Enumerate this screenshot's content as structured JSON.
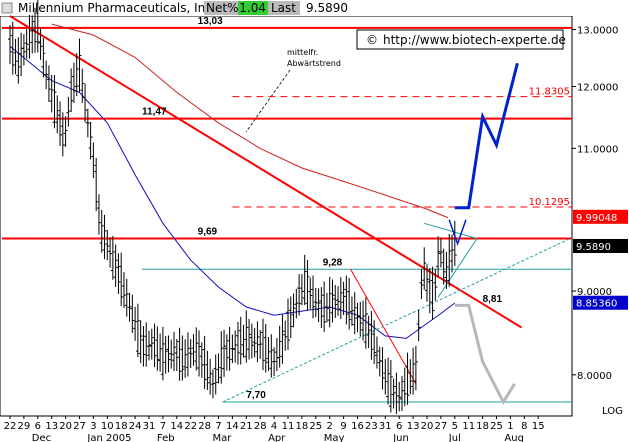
{
  "header": {
    "ticker_name": "Millennium Pharmaceuticals, Inc.",
    "net_label": "Net%",
    "net_value": "1.04",
    "last_label": "Last",
    "last_value": "9.5890"
  },
  "copyright": {
    "symbol": "©",
    "url": "http://www.biotech-experte.de"
  },
  "annotations": {
    "trend_note_line1": "mittelfr.",
    "trend_note_line2": "Abwärtstrend"
  },
  "colors": {
    "price_bar": "#000000",
    "trend_line": "#ff0000",
    "moving_avg_short": "#1010c0",
    "moving_avg_long": "#cc2222",
    "support": "#20a0a0",
    "projection_up": "#0022cc",
    "projection_down": "#b8b8b8",
    "header_green": "#33cc33",
    "badge_red": "#ff0000",
    "badge_black": "#000000",
    "badge_blue": "#0000cc"
  },
  "chart_data": {
    "type": "ohlc",
    "scale": "log",
    "ylim": [
      7.55,
      13.25
    ],
    "y_ticks": [
      {
        "value": 13.0,
        "label": "13.0000"
      },
      {
        "value": 12.0,
        "label": "12.0000"
      },
      {
        "value": 11.0,
        "label": "11.0000"
      },
      {
        "value": 9.0,
        "label": "9.0000"
      },
      {
        "value": 8.0,
        "label": "8.0000"
      }
    ],
    "y_axis_note": "LOG",
    "x_day_labels": [
      "22",
      "29",
      "6",
      "13",
      "20",
      "27",
      "3",
      "10",
      "18",
      "24",
      "31",
      "7",
      "14",
      "22",
      "28",
      "7",
      "14",
      "21",
      "28",
      "4",
      "11",
      "18",
      "25",
      "2",
      "9",
      "16",
      "23",
      "31",
      "6",
      "13",
      "20",
      "27",
      "5",
      "11",
      "18",
      "25",
      "1",
      "8",
      "15"
    ],
    "x_month_labels": [
      {
        "label": "Dec",
        "at_day_index": 2
      },
      {
        "label": "Jan 2005",
        "at_day_index": 6
      },
      {
        "label": "Feb",
        "at_day_index": 11
      },
      {
        "label": "Mar",
        "at_day_index": 15
      },
      {
        "label": "Apr",
        "at_day_index": 19
      },
      {
        "label": "May",
        "at_day_index": 23
      },
      {
        "label": "Jun",
        "at_day_index": 28
      },
      {
        "label": "Jul",
        "at_day_index": 32
      },
      {
        "label": "Aug",
        "at_day_index": 36
      }
    ],
    "price_anchors": [
      {
        "day_index": 0,
        "value": 12.7
      },
      {
        "day_index": 0.6,
        "value": 12.4
      },
      {
        "day_index": 1.3,
        "value": 12.8
      },
      {
        "day_index": 2.0,
        "value": 13.0
      },
      {
        "day_index": 2.6,
        "value": 12.2
      },
      {
        "day_index": 3.3,
        "value": 11.6
      },
      {
        "day_index": 3.9,
        "value": 11.1
      },
      {
        "day_index": 4.4,
        "value": 11.9
      },
      {
        "day_index": 5.0,
        "value": 12.3
      },
      {
        "day_index": 5.6,
        "value": 11.4
      },
      {
        "day_index": 6.0,
        "value": 10.8
      },
      {
        "day_index": 6.5,
        "value": 9.8
      },
      {
        "day_index": 7.0,
        "value": 9.6
      },
      {
        "day_index": 7.6,
        "value": 9.3
      },
      {
        "day_index": 8.2,
        "value": 9.0
      },
      {
        "day_index": 8.8,
        "value": 8.7
      },
      {
        "day_index": 9.5,
        "value": 8.3
      },
      {
        "day_index": 10.2,
        "value": 8.35
      },
      {
        "day_index": 11.0,
        "value": 8.2
      },
      {
        "day_index": 11.8,
        "value": 8.25
      },
      {
        "day_index": 12.5,
        "value": 8.15
      },
      {
        "day_index": 13.3,
        "value": 8.3
      },
      {
        "day_index": 14.0,
        "value": 8.1
      },
      {
        "day_index": 14.6,
        "value": 7.9
      },
      {
        "day_index": 15.3,
        "value": 8.2
      },
      {
        "day_index": 16.0,
        "value": 8.3
      },
      {
        "day_index": 17.0,
        "value": 8.4
      },
      {
        "day_index": 18.0,
        "value": 8.35
      },
      {
        "day_index": 19.0,
        "value": 8.15
      },
      {
        "day_index": 19.8,
        "value": 8.45
      },
      {
        "day_index": 20.5,
        "value": 8.8
      },
      {
        "day_index": 21.2,
        "value": 9.1
      },
      {
        "day_index": 21.8,
        "value": 8.9
      },
      {
        "day_index": 22.5,
        "value": 8.75
      },
      {
        "day_index": 23.2,
        "value": 8.85
      },
      {
        "day_index": 24.0,
        "value": 8.9
      },
      {
        "day_index": 24.8,
        "value": 8.7
      },
      {
        "day_index": 25.5,
        "value": 8.6
      },
      {
        "day_index": 26.2,
        "value": 8.35
      },
      {
        "day_index": 26.9,
        "value": 8.0
      },
      {
        "day_index": 27.5,
        "value": 7.8
      },
      {
        "day_index": 28.1,
        "value": 7.75
      },
      {
        "day_index": 28.7,
        "value": 7.95
      },
      {
        "day_index": 29.2,
        "value": 8.05
      },
      {
        "day_index": 29.7,
        "value": 9.35
      },
      {
        "day_index": 30.1,
        "value": 9.0
      },
      {
        "day_index": 30.5,
        "value": 8.9
      },
      {
        "day_index": 30.9,
        "value": 9.6
      },
      {
        "day_index": 31.3,
        "value": 9.2
      },
      {
        "day_index": 31.6,
        "value": 9.35
      },
      {
        "day_index": 32.0,
        "value": 9.59
      }
    ],
    "moving_average_short": [
      {
        "day_index": 0,
        "value": 12.7
      },
      {
        "day_index": 3,
        "value": 12.1
      },
      {
        "day_index": 5,
        "value": 11.9
      },
      {
        "day_index": 7,
        "value": 11.4
      },
      {
        "day_index": 9,
        "value": 10.6
      },
      {
        "day_index": 11,
        "value": 9.9
      },
      {
        "day_index": 13,
        "value": 9.4
      },
      {
        "day_index": 15,
        "value": 9.05
      },
      {
        "day_index": 17,
        "value": 8.8
      },
      {
        "day_index": 19,
        "value": 8.7
      },
      {
        "day_index": 21,
        "value": 8.75
      },
      {
        "day_index": 23,
        "value": 8.8
      },
      {
        "day_index": 25,
        "value": 8.7
      },
      {
        "day_index": 27,
        "value": 8.45
      },
      {
        "day_index": 28.5,
        "value": 8.42
      },
      {
        "day_index": 30,
        "value": 8.6
      },
      {
        "day_index": 31,
        "value": 8.72
      },
      {
        "day_index": 32,
        "value": 8.85
      }
    ],
    "moving_average_long": [
      {
        "day_index": 3,
        "value": 13.1
      },
      {
        "day_index": 6,
        "value": 12.9
      },
      {
        "day_index": 9,
        "value": 12.5
      },
      {
        "day_index": 12,
        "value": 11.9
      },
      {
        "day_index": 15,
        "value": 11.4
      },
      {
        "day_index": 18,
        "value": 11.0
      },
      {
        "day_index": 21,
        "value": 10.7
      },
      {
        "day_index": 24,
        "value": 10.5
      },
      {
        "day_index": 27,
        "value": 10.3
      },
      {
        "day_index": 30,
        "value": 10.1
      },
      {
        "day_index": 31.5,
        "value": 9.98
      }
    ],
    "levels": [
      {
        "value": 13.03,
        "label": "13,03",
        "color": "#ff0000",
        "style": "solid",
        "label_day_index": 13.5
      },
      {
        "value": 11.47,
        "label": "11,47",
        "color": "#ff0000",
        "style": "solid",
        "label_day_index": 9.5
      },
      {
        "value": 9.69,
        "label": "9,69",
        "color": "#ff0000",
        "style": "solid",
        "label_day_index": 13.5
      },
      {
        "value": 9.28,
        "label": "9,28",
        "color": "#20a0a0",
        "style": "solid",
        "label_day_index": 22.5
      },
      {
        "value": 8.81,
        "label": "8,81",
        "color": "#000000",
        "style": "none",
        "label_day_index": 34.0
      },
      {
        "value": 7.7,
        "label": "7,70",
        "color": "#20a0a0",
        "style": "solid",
        "label_day_index": 17.0
      }
    ],
    "dashed_targets": [
      {
        "value": 11.8305,
        "label": "11.8305",
        "color": "#ff0000"
      },
      {
        "value": 10.1295,
        "label": "10.1295",
        "color": "#ff0000"
      }
    ],
    "badges": [
      {
        "value": 9.99048,
        "label": "9.99048",
        "color": "#ff0000"
      },
      {
        "value": 9.589,
        "label": "9.5890",
        "color": "#000000"
      },
      {
        "value": 8.8536,
        "label": "8.85360",
        "color": "#0000cc"
      }
    ],
    "projection_up": [
      {
        "day_index": 32,
        "value": 10.12
      },
      {
        "day_index": 33,
        "value": 10.12
      },
      {
        "day_index": 34,
        "value": 11.5
      },
      {
        "day_index": 35,
        "value": 11.05
      },
      {
        "day_index": 36.5,
        "value": 12.4
      }
    ],
    "projection_down": [
      {
        "day_index": 32,
        "value": 8.82
      },
      {
        "day_index": 33,
        "value": 8.82
      },
      {
        "day_index": 34,
        "value": 8.15
      },
      {
        "day_index": 35.5,
        "value": 7.7
      },
      {
        "day_index": 36.3,
        "value": 7.9
      }
    ]
  }
}
